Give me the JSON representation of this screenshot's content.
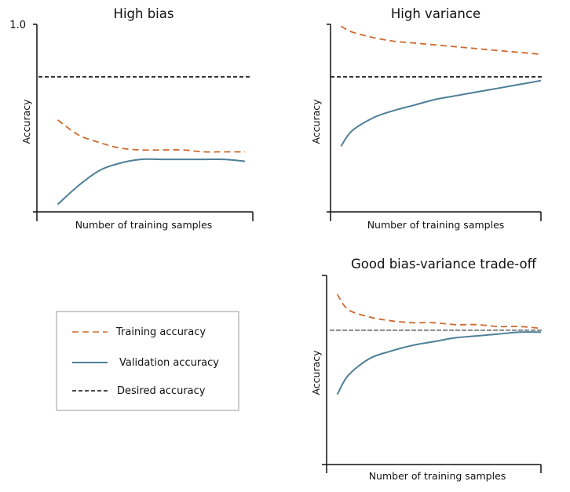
{
  "colors": {
    "training": "#cc6a2c",
    "validation": "#4d7f97",
    "desired": "#111111",
    "axis": "#111111",
    "legend_border": "#999999"
  },
  "legend": {
    "entries": [
      {
        "label": "Training accuracy",
        "style": "dashed-orange"
      },
      {
        "label": "Validation accuracy",
        "style": "solid-blue"
      },
      {
        "label": "Desired accuracy",
        "style": "dashed-black"
      }
    ]
  },
  "chart_data": [
    {
      "type": "line",
      "title": "High bias",
      "xlabel": "Number of training samples",
      "ylabel": "Accuracy",
      "yticks": [
        "1.0"
      ],
      "xlim": [
        0,
        1
      ],
      "ylim": [
        0,
        1
      ],
      "desired": 0.72,
      "series": [
        {
          "name": "Training accuracy",
          "x": [
            0.1,
            0.2,
            0.3,
            0.4,
            0.5,
            0.6,
            0.7,
            0.8,
            0.9,
            1.0
          ],
          "values": [
            0.49,
            0.41,
            0.37,
            0.34,
            0.33,
            0.33,
            0.33,
            0.32,
            0.32,
            0.32
          ]
        },
        {
          "name": "Validation accuracy",
          "x": [
            0.1,
            0.2,
            0.3,
            0.4,
            0.5,
            0.6,
            0.7,
            0.8,
            0.9,
            1.0
          ],
          "values": [
            0.04,
            0.14,
            0.22,
            0.26,
            0.28,
            0.28,
            0.28,
            0.28,
            0.28,
            0.27
          ]
        }
      ]
    },
    {
      "type": "line",
      "title": "High variance",
      "xlabel": "Number of training samples",
      "ylabel": "Accuracy",
      "yticks": [],
      "xlim": [
        0,
        1
      ],
      "ylim": [
        0,
        1
      ],
      "desired": 0.72,
      "series": [
        {
          "name": "Training accuracy",
          "x": [
            0.05,
            0.1,
            0.2,
            0.3,
            0.4,
            0.5,
            0.6,
            0.7,
            0.8,
            0.9,
            1.0
          ],
          "values": [
            0.99,
            0.96,
            0.93,
            0.91,
            0.9,
            0.89,
            0.88,
            0.87,
            0.86,
            0.85,
            0.84
          ]
        },
        {
          "name": "Validation accuracy",
          "x": [
            0.05,
            0.1,
            0.2,
            0.3,
            0.4,
            0.5,
            0.6,
            0.7,
            0.8,
            0.9,
            1.0
          ],
          "values": [
            0.35,
            0.43,
            0.5,
            0.54,
            0.57,
            0.6,
            0.62,
            0.64,
            0.66,
            0.68,
            0.7
          ]
        }
      ]
    },
    {
      "type": "line",
      "title": "Good bias-variance trade-off",
      "xlabel": "Number of training samples",
      "ylabel": "Accuracy",
      "yticks": [],
      "xlim": [
        0,
        1
      ],
      "ylim": [
        0,
        1
      ],
      "desired": 0.71,
      "series": [
        {
          "name": "Training accuracy",
          "x": [
            0.05,
            0.1,
            0.2,
            0.3,
            0.4,
            0.5,
            0.6,
            0.7,
            0.8,
            0.9,
            1.0
          ],
          "values": [
            0.9,
            0.82,
            0.78,
            0.76,
            0.75,
            0.75,
            0.74,
            0.74,
            0.73,
            0.73,
            0.72
          ]
        },
        {
          "name": "Validation accuracy",
          "x": [
            0.05,
            0.1,
            0.2,
            0.3,
            0.4,
            0.5,
            0.6,
            0.7,
            0.8,
            0.9,
            1.0
          ],
          "values": [
            0.37,
            0.47,
            0.56,
            0.6,
            0.63,
            0.65,
            0.67,
            0.68,
            0.69,
            0.7,
            0.7
          ]
        }
      ]
    }
  ]
}
